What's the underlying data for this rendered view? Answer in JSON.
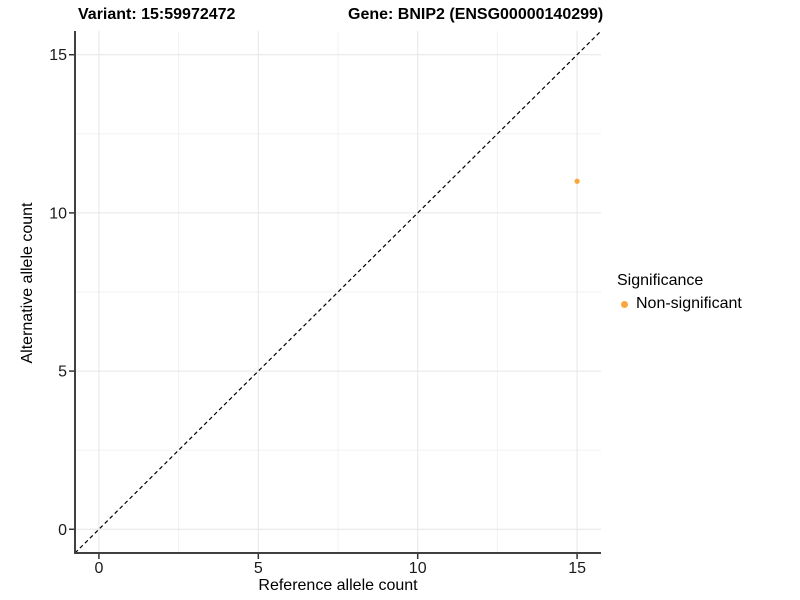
{
  "figure": {
    "title_left": "Variant: 15:59972472",
    "title_right": "Gene: BNIP2 (ENSG00000140299)"
  },
  "chart_data": {
    "type": "scatter",
    "title_left": "Variant: 15:59972472",
    "title_right": "Gene: BNIP2 (ENSG00000140299)",
    "xlabel": "Reference allele count",
    "ylabel": "Alternative allele count",
    "xlim": [
      -0.75,
      15.75
    ],
    "ylim": [
      -0.75,
      15.75
    ],
    "xticks": [
      0,
      5,
      10,
      15
    ],
    "yticks": [
      0,
      5,
      10,
      15
    ],
    "x_minor": [
      2.5,
      7.5,
      12.5
    ],
    "y_minor": [
      2.5,
      7.5,
      12.5
    ],
    "grid": true,
    "reference_line": {
      "style": "dashed",
      "from": [
        -0.75,
        -0.75
      ],
      "to": [
        15.75,
        15.75
      ],
      "color": "#000000"
    },
    "series": [
      {
        "name": "Non-significant",
        "color": "#FAA63C",
        "points": [
          {
            "x": 15,
            "y": 11
          }
        ]
      }
    ],
    "legend": {
      "title": "Significance",
      "position": "right",
      "items": [
        {
          "label": "Non-significant",
          "color": "#FAA63C"
        }
      ]
    },
    "colors": {
      "axis_line": "#404040",
      "tick_mark": "#333333",
      "grid_major": "#e6e6e6",
      "grid_minor": "#f2f2f2",
      "point": "#FAA63C"
    }
  }
}
